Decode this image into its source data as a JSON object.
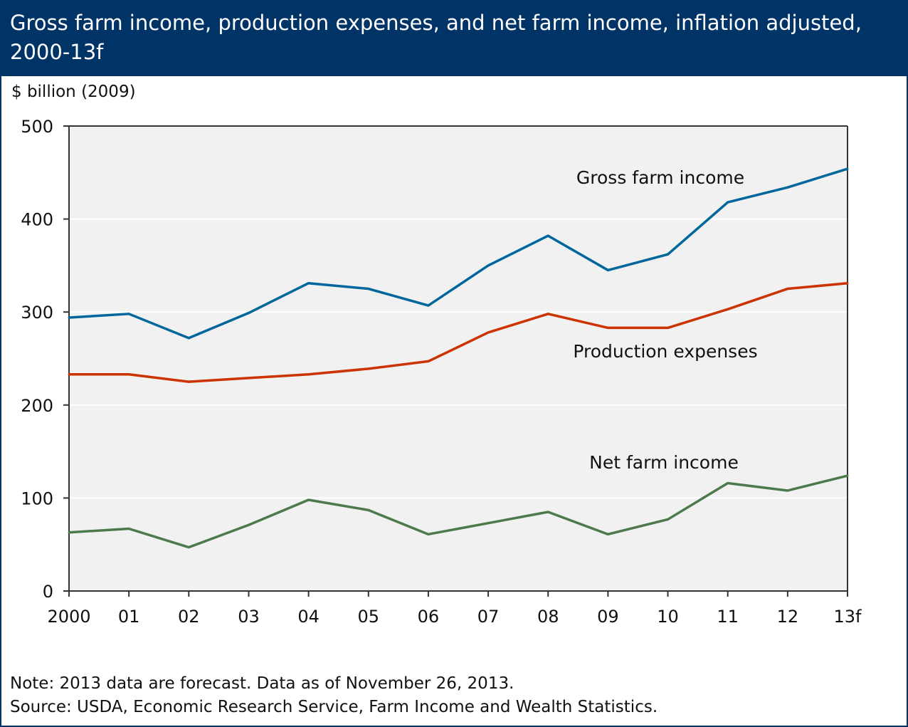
{
  "header": {
    "title": "Gross farm income, production expenses, and net farm income, inflation adjusted, 2000-13f"
  },
  "footer": {
    "note": "Note: 2013 data are forecast. Data as of November 26, 2013.",
    "source": "Source: USDA, Economic Research Service, Farm Income and Wealth Statistics."
  },
  "chart_data": {
    "type": "line",
    "title": "Gross farm income, production expenses, and net farm income, inflation adjusted, 2000-13f",
    "ylabel": "$ billion (2009)",
    "xlabel": "",
    "ylim": [
      0,
      500
    ],
    "yticks": [
      0,
      100,
      200,
      300,
      400,
      500
    ],
    "grid": true,
    "categories": [
      "2000",
      "01",
      "02",
      "03",
      "04",
      "05",
      "06",
      "07",
      "08",
      "09",
      "10",
      "11",
      "12",
      "13f"
    ],
    "series": [
      {
        "name": "Gross farm income",
        "color": "#00669c",
        "values": [
          294,
          298,
          272,
          299,
          331,
          325,
          307,
          350,
          382,
          345,
          362,
          418,
          434,
          454
        ]
      },
      {
        "name": "Production expenses",
        "color": "#cc3300",
        "values": [
          233,
          233,
          225,
          229,
          233,
          239,
          247,
          278,
          298,
          283,
          283,
          303,
          325,
          331
        ]
      },
      {
        "name": "Net farm income",
        "color": "#4d7a4d",
        "values": [
          63,
          67,
          47,
          71,
          98,
          87,
          61,
          73,
          85,
          61,
          77,
          116,
          108,
          124
        ]
      }
    ],
    "legend": "inline labels"
  }
}
